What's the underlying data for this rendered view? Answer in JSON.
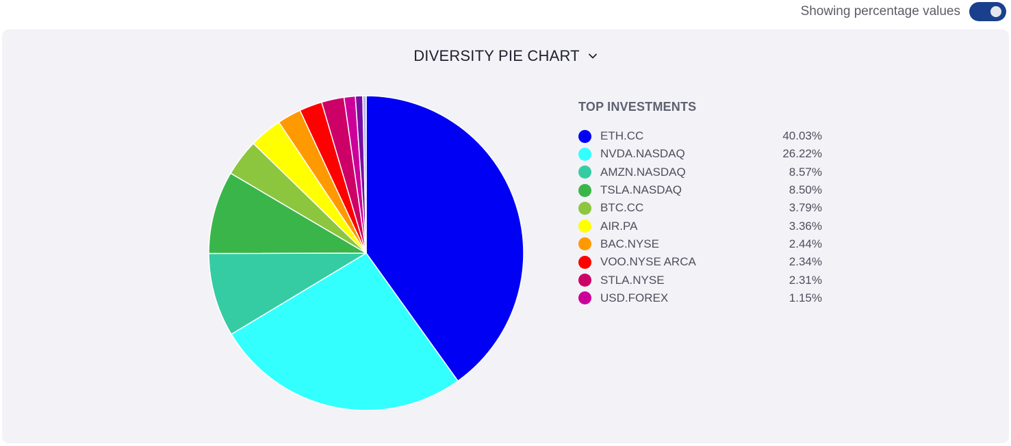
{
  "toggle": {
    "label": "Showing percentage values",
    "state": "on",
    "color": "#1a3f8c"
  },
  "chart": {
    "title": "DIVERSITY PIE CHART",
    "dropdown_icon": "chevron-down-icon"
  },
  "legend": {
    "heading": "TOP INVESTMENTS",
    "items": [
      {
        "name": "ETH.CC",
        "value": "40.03%",
        "color": "#0000f5"
      },
      {
        "name": "NVDA.NASDAQ",
        "value": "26.22%",
        "color": "#33ffff"
      },
      {
        "name": "AMZN.NASDAQ",
        "value": "8.57%",
        "color": "#36cca3"
      },
      {
        "name": "TSLA.NASDAQ",
        "value": "8.50%",
        "color": "#3ab54a"
      },
      {
        "name": "BTC.CC",
        "value": "3.79%",
        "color": "#8cc63f"
      },
      {
        "name": "AIR.PA",
        "value": "3.36%",
        "color": "#ffff00"
      },
      {
        "name": "BAC.NYSE",
        "value": "2.44%",
        "color": "#ff9900"
      },
      {
        "name": "VOO.NYSE ARCA",
        "value": "2.34%",
        "color": "#ff0000"
      },
      {
        "name": "STLA.NYSE",
        "value": "2.31%",
        "color": "#cc0066"
      },
      {
        "name": "USD.FOREX",
        "value": "1.15%",
        "color": "#cc0099"
      }
    ]
  },
  "chart_data": {
    "type": "pie",
    "title": "DIVERSITY PIE CHART",
    "labels": [
      "ETH.CC",
      "NVDA.NASDAQ",
      "AMZN.NASDAQ",
      "TSLA.NASDAQ",
      "BTC.CC",
      "AIR.PA",
      "BAC.NYSE",
      "VOO.NYSE ARCA",
      "STLA.NYSE",
      "USD.FOREX"
    ],
    "values": [
      40.03,
      26.22,
      8.57,
      8.5,
      3.79,
      3.36,
      2.44,
      2.34,
      2.31,
      1.15
    ],
    "colors": [
      "#0000f5",
      "#33ffff",
      "#36cca3",
      "#3ab54a",
      "#8cc63f",
      "#ffff00",
      "#ff9900",
      "#ff0000",
      "#cc0066",
      "#cc0099"
    ],
    "extra_slices": [
      {
        "value": 0.75,
        "color": "#7a0fa3"
      },
      {
        "value": 0.35,
        "color": "#b8b8e6"
      }
    ],
    "legend_position": "right",
    "start_angle_deg": 0,
    "direction": "clockwise"
  }
}
